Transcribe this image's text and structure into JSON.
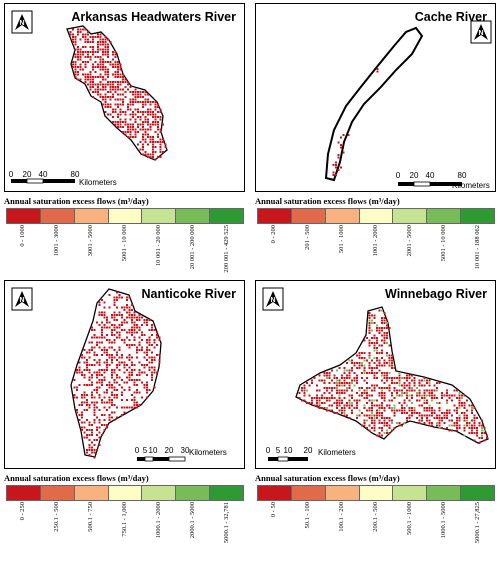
{
  "panels": [
    {
      "title": "Arkansas Headwaters River",
      "scale": {
        "ticks": [
          "0",
          "20",
          "40",
          "80"
        ],
        "unit": "Kilometers"
      },
      "legend": {
        "title": "Annual saturation excess flows (m³/day)",
        "classes": [
          "0 - 1000",
          "1001 - 3000",
          "3001 - 5000",
          "5001 - 10 000",
          "10 001 - 20 000",
          "20 001 - 200 000",
          "200 001 - 429 525"
        ]
      }
    },
    {
      "title": "Cache River",
      "scale": {
        "ticks": [
          "0",
          "20",
          "40",
          "80"
        ],
        "unit": "Kilometers"
      },
      "legend": {
        "title": "Annual saturation excess flows (m³/day)",
        "classes": [
          "0 - 200",
          "201 - 500",
          "501 - 1000",
          "1001 - 2000",
          "2001 - 5000",
          "5001 - 10 000",
          "10 001 - 188 062"
        ]
      }
    },
    {
      "title": "Nanticoke River",
      "scale": {
        "ticks": [
          "0",
          "5",
          "10",
          "20",
          "30"
        ],
        "unit": "Kilometers"
      },
      "legend": {
        "title": "Annual saturation excess flows (m³/day)",
        "classes": [
          "0 - 250",
          "250.1 - 500",
          "500.1 - 750",
          "750.1 - 1,000",
          "1000.1 - 2000",
          "2000.1 - 5000",
          "5000.1 - 32,781"
        ]
      }
    },
    {
      "title": "Winnebago River",
      "scale": {
        "ticks": [
          "0",
          "5",
          "10",
          "20"
        ],
        "unit": "Kilometers"
      },
      "legend": {
        "title": "Annual saturation excess flows (m³/day)",
        "classes": [
          "0 - 50",
          "50.1 - 100",
          "100.1 - 200",
          "200.1 - 500",
          "500.1 - 1000",
          "1000.1 - 5000",
          "5000.1 - 27,825"
        ]
      }
    }
  ],
  "legend_colors": [
    "#c8161d",
    "#e06a4a",
    "#f7b27f",
    "#fdfdc6",
    "#c6e394",
    "#78bc5a",
    "#2f9a34"
  ],
  "map_style": {
    "outline": "#000000",
    "fill": "#ffffff",
    "raster_main": "#c8161d",
    "raster_minor": "#78bc5a"
  }
}
